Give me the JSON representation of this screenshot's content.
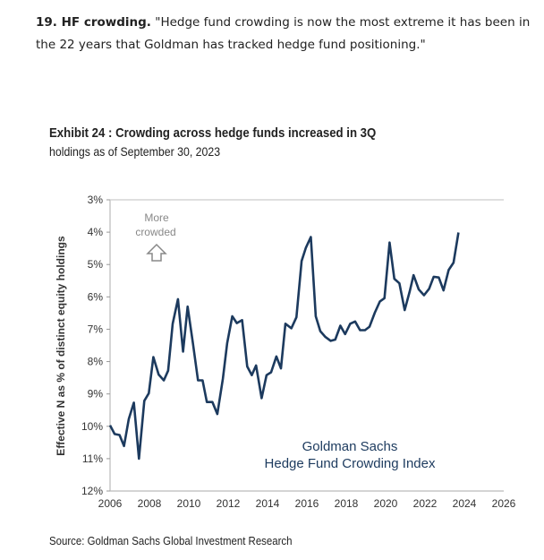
{
  "intro": {
    "label": "19. HF crowding.",
    "quote": " \"Hedge fund crowding is now the most extreme it has been in the 22 years that Goldman has tracked hedge fund positioning.\""
  },
  "exhibit": {
    "title": "Exhibit 24 : Crowding across hedge funds increased in 3Q",
    "subtitle": "holdings as of September 30, 2023",
    "source": "Source: Goldman Sachs Global Investment Research"
  },
  "chart_data": {
    "type": "line",
    "title": "Exhibit 24 : Crowding across hedge funds increased in 3Q",
    "subtitle": "holdings as of September 30, 2023",
    "xlabel": "",
    "ylabel": "Effective N as % of distinct equity holdings",
    "xlim": [
      2006,
      2026
    ],
    "ylim": [
      3,
      12
    ],
    "y_inverted": true,
    "x_ticks": [
      "2006",
      "2008",
      "2010",
      "2012",
      "2014",
      "2016",
      "2018",
      "2020",
      "2022",
      "2024",
      "2026"
    ],
    "y_ticks": [
      "3%",
      "4%",
      "5%",
      "6%",
      "7%",
      "8%",
      "9%",
      "10%",
      "11%",
      "12%"
    ],
    "annotation_top": [
      "More",
      "crowded"
    ],
    "annotation_series": [
      "Goldman Sachs",
      "Hedge Fund Crowding Index"
    ],
    "line_color": "#1c3a5e",
    "series": [
      {
        "name": "Goldman Sachs Hedge Fund Crowding Index",
        "x": [
          2006.0,
          2006.23,
          2006.48,
          2006.71,
          2006.95,
          2007.21,
          2007.47,
          2007.74,
          2007.97,
          2008.2,
          2008.47,
          2008.73,
          2008.95,
          2009.18,
          2009.45,
          2009.71,
          2009.94,
          2010.21,
          2010.47,
          2010.7,
          2010.92,
          2011.2,
          2011.45,
          2011.73,
          2011.95,
          2012.21,
          2012.44,
          2012.71,
          2012.97,
          2013.2,
          2013.42,
          2013.7,
          2013.95,
          2014.18,
          2014.45,
          2014.68,
          2014.91,
          2015.21,
          2015.47,
          2015.73,
          2015.95,
          2016.2,
          2016.45,
          2016.68,
          2016.94,
          2017.21,
          2017.44,
          2017.7,
          2017.94,
          2018.2,
          2018.45,
          2018.7,
          2018.95,
          2019.18,
          2019.45,
          2019.71,
          2019.94,
          2020.2,
          2020.44,
          2020.7,
          2020.97,
          2021.23,
          2021.42,
          2021.68,
          2021.95,
          2022.21,
          2022.44,
          2022.7,
          2022.94,
          2023.2,
          2023.45,
          2023.7
        ],
        "y": [
          9.97,
          10.24,
          10.27,
          10.61,
          9.78,
          9.27,
          11.0,
          9.21,
          8.98,
          7.86,
          8.4,
          8.58,
          8.28,
          6.83,
          6.07,
          7.69,
          6.3,
          7.43,
          8.58,
          8.58,
          9.25,
          9.25,
          9.62,
          8.53,
          7.43,
          6.6,
          6.81,
          6.72,
          8.15,
          8.42,
          8.12,
          9.13,
          8.42,
          8.33,
          7.84,
          8.21,
          6.83,
          6.97,
          6.63,
          4.89,
          4.48,
          4.15,
          6.6,
          7.06,
          7.24,
          7.36,
          7.32,
          6.89,
          7.15,
          6.83,
          6.76,
          7.03,
          7.03,
          6.92,
          6.49,
          6.14,
          6.04,
          4.32,
          5.44,
          5.58,
          6.41,
          5.81,
          5.33,
          5.77,
          5.95,
          5.75,
          5.38,
          5.4,
          5.8,
          5.17,
          4.94,
          4.01
        ]
      }
    ]
  }
}
